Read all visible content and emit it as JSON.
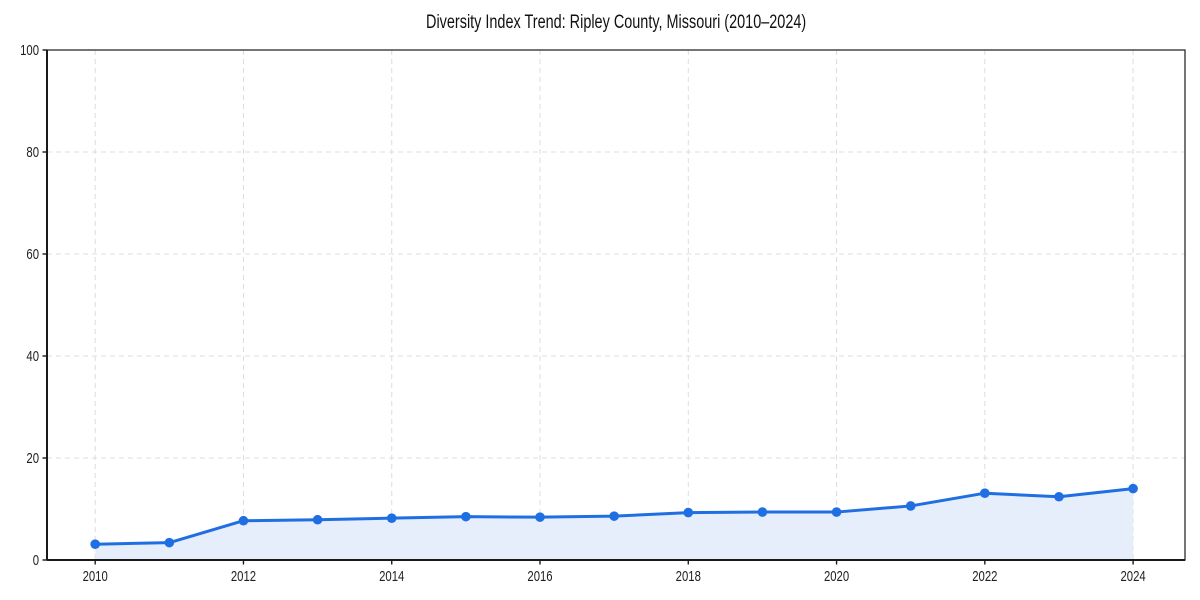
{
  "chart_data": {
    "type": "line",
    "title": "Diversity Index Trend: Ripley County, Missouri (2010–2024)",
    "xlabel": "",
    "ylabel": "",
    "x": [
      2010,
      2011,
      2012,
      2013,
      2014,
      2015,
      2016,
      2017,
      2018,
      2019,
      2020,
      2021,
      2022,
      2023,
      2024
    ],
    "series": [
      {
        "name": "Diversity Index",
        "values": [
          3.1,
          3.4,
          7.7,
          7.9,
          8.2,
          8.5,
          8.4,
          8.6,
          9.3,
          9.4,
          9.4,
          10.6,
          13.1,
          12.4,
          14.0
        ]
      }
    ],
    "x_ticks": [
      2010,
      2012,
      2014,
      2016,
      2018,
      2020,
      2022,
      2024
    ],
    "y_ticks": [
      0,
      20,
      40,
      60,
      80,
      100
    ],
    "xlim": [
      2009.35,
      2024.7
    ],
    "ylim": [
      0,
      100
    ],
    "grid": true,
    "grid_style": "dashed",
    "legend": "none",
    "marker": "circle",
    "area_fill": true,
    "colors": {
      "line": "#1f6fe3",
      "fill": "#e6eefb",
      "grid": "#dcdcdc",
      "axis": "#1a1a1a",
      "tick_label": "#1f1f1f",
      "title": "#111111",
      "background": "#ffffff"
    }
  }
}
